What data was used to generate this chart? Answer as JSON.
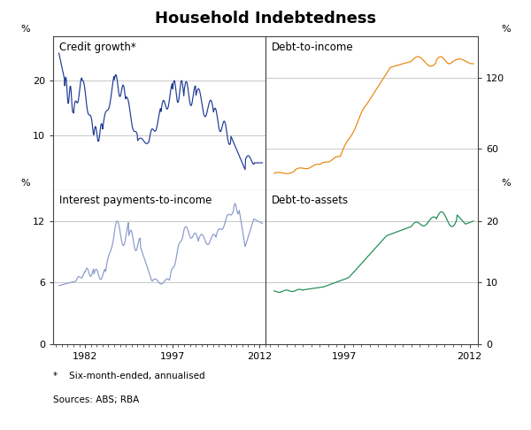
{
  "title": "Household Indebtedness",
  "footnote": "*    Six-month-ended, annualised",
  "sources": "Sources: ABS; RBA",
  "panels": [
    {
      "label": "Credit growth*",
      "side": "left",
      "yticks": [
        10,
        20
      ],
      "ylim": [
        0,
        28
      ],
      "color": "#1f3a93",
      "xstart": 1976.5,
      "xend": 2013.0,
      "xticks": [
        1982,
        1997,
        2012
      ],
      "grid_values": [
        10,
        20
      ],
      "show_xtick_labels": false,
      "show_zero_ytick": false
    },
    {
      "label": "Debt-to-income",
      "side": "right",
      "yticks": [
        60,
        120
      ],
      "ylim": [
        25,
        155
      ],
      "color": "#e8850c",
      "xstart": 1987.5,
      "xend": 2013.0,
      "xticks": [
        1997,
        2012
      ],
      "grid_values": [
        60,
        120
      ],
      "show_xtick_labels": false,
      "show_zero_ytick": false
    },
    {
      "label": "Interest payments-to-income",
      "side": "left",
      "yticks": [
        0,
        6,
        12
      ],
      "ylim": [
        0,
        15
      ],
      "color": "#8899cc",
      "xstart": 1976.5,
      "xend": 2013.0,
      "xticks": [
        1982,
        1997,
        2012
      ],
      "grid_values": [
        6,
        12
      ],
      "show_xtick_labels": true,
      "show_zero_ytick": true
    },
    {
      "label": "Debt-to-assets",
      "side": "right",
      "yticks": [
        0,
        10,
        20
      ],
      "ylim": [
        0,
        25
      ],
      "color": "#1a8a50",
      "xstart": 1987.5,
      "xend": 2013.0,
      "xticks": [
        1997,
        2012
      ],
      "grid_values": [
        10,
        20
      ],
      "show_xtick_labels": true,
      "show_zero_ytick": true
    }
  ]
}
